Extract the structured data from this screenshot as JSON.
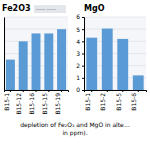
{
  "chart_data": [
    {
      "type": "bar",
      "title": "Fe2O3",
      "annotation": "─── ───",
      "categories": [
        "B15-1",
        "B15-12",
        "B15-16",
        "B15-15",
        "B15-19"
      ],
      "values": [
        2.5,
        4.0,
        4.65,
        4.65,
        5.0
      ],
      "color": "#5B9BD5",
      "ylim": [
        0,
        6
      ],
      "yticks": [
        0,
        1,
        2,
        3,
        4,
        5,
        6
      ],
      "grid": true,
      "tick_labels": "x"
    },
    {
      "type": "bar",
      "title": "MgO",
      "categories": [
        "B15-1",
        "B15-2",
        "B15-5",
        "B15-6"
      ],
      "values": [
        4.3,
        5.05,
        4.2,
        1.2
      ],
      "color": "#5B9BD5",
      "ylim": [
        0,
        6
      ],
      "yticks": [
        0,
        1,
        2,
        3,
        4,
        5,
        6
      ],
      "grid": true
    }
  ],
  "caption": "depletion of Fe₂O₃ and MgO in alte…\nin ppm)."
}
